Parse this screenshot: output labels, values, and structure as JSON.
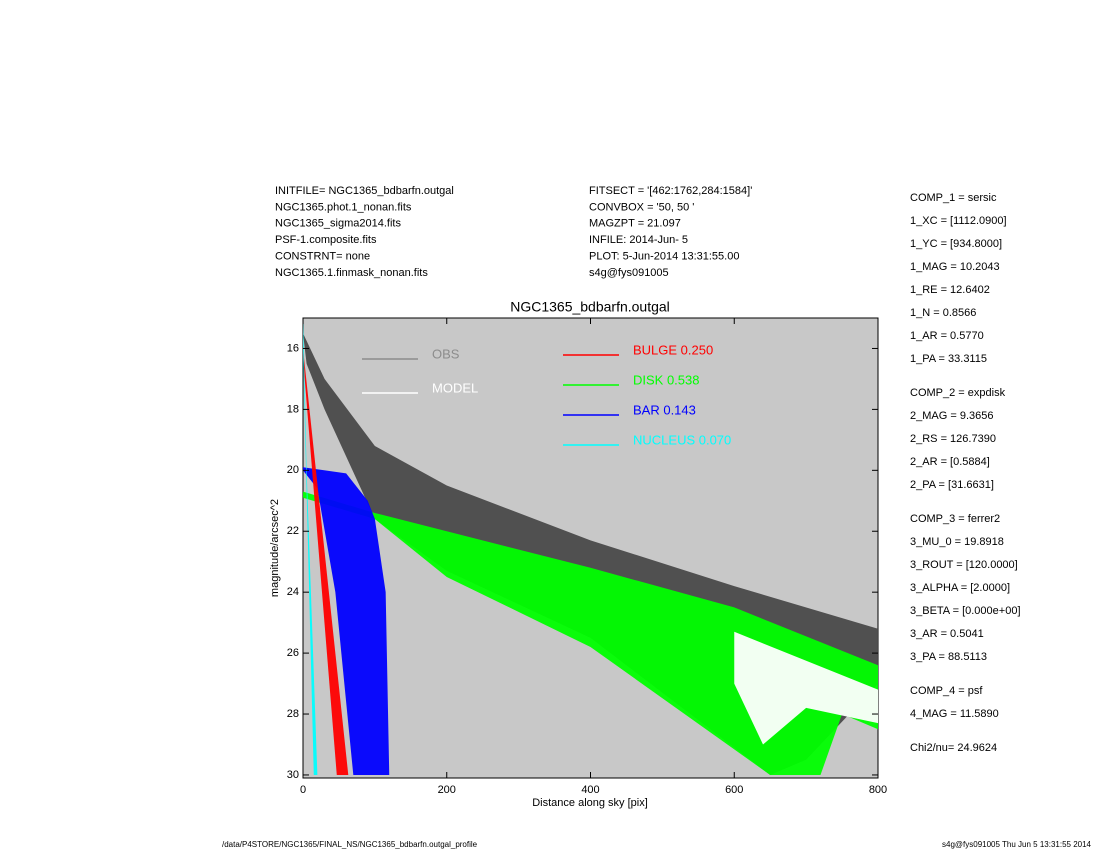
{
  "header": {
    "left": [
      "INITFILE= NGC1365_bdbarfn.outgal",
      "NGC1365.phot.1_nonan.fits",
      "NGC1365_sigma2014.fits",
      "PSF-1.composite.fits",
      "CONSTRNT= none",
      "NGC1365.1.finmask_nonan.fits"
    ],
    "middle": [
      "FITSECT = '[462:1762,284:1584]'",
      "CONVBOX = '50, 50  '",
      "MAGZPT  =              21.097",
      "INFILE: 2014-Jun- 5",
      "PLOT:  5-Jun-2014 13:31:55.00",
      "s4g@fys091005"
    ]
  },
  "components": [
    [
      "COMP_1  = sersic",
      "1_XC     = [1112.0900]",
      "1_YC     = [934.8000]",
      "1_MAG   = 10.2043",
      "1_RE     = 12.6402",
      "1_N      = 0.8566",
      "1_AR     = 0.5770",
      "1_PA     = 33.3115"
    ],
    [
      "COMP_2  = expdisk",
      "2_MAG   = 9.3656",
      "2_RS     = 126.7390",
      "2_AR     = [0.5884]",
      "2_PA     = [31.6631]"
    ],
    [
      "COMP_3  = ferrer2",
      "3_MU_0  = 19.8918",
      "3_ROUT  = [120.0000]",
      "3_ALPHA = [2.0000]",
      "3_BETA  = [0.000e+00]",
      "3_AR     = 0.5041",
      "3_PA     = 88.5113"
    ],
    [
      "COMP_4  = psf",
      "4_MAG   = 11.5890"
    ],
    [
      "Chi2/nu=      24.9624"
    ]
  ],
  "footer": {
    "left": "/data/P4STORE/NGC1365/FINAL_NS/NGC1365_bdbarfn.outgal_profile",
    "right": "s4g@fys091005  Thu Jun  5 13:31:55 2014"
  },
  "chart_data": {
    "type": "band",
    "title": "NGC1365_bdbarfn.outgal",
    "x_label": "Distance along sky [pix]",
    "y_label": "magnitude/arcsec^2",
    "xlim": [
      0,
      800
    ],
    "ylim": [
      15,
      30.1
    ],
    "y_inverted": true,
    "xticks": [
      0,
      200,
      400,
      600,
      800
    ],
    "yticks": [
      16,
      18,
      20,
      22,
      24,
      26,
      28,
      30
    ],
    "background": "#c8c8c8",
    "series": [
      {
        "name": "OBS",
        "color": "#8c8c8c",
        "fill": "#4a4a4a",
        "x": [
          0,
          30,
          100,
          200,
          400,
          600,
          800,
          800,
          700,
          650,
          400,
          200,
          100,
          30,
          5
        ],
        "values": [
          15.5,
          17,
          19.2,
          20.5,
          22.3,
          23.8,
          25.2,
          27,
          29.5,
          30,
          25.5,
          23.3,
          21.6,
          18,
          16.5
        ]
      },
      {
        "name": "MODEL",
        "color": "#ffffff",
        "fill": "#ffffff",
        "x": [
          600,
          800,
          800,
          700,
          640,
          600
        ],
        "values": [
          25.3,
          27.2,
          28.3,
          27.8,
          29,
          27
        ]
      },
      {
        "name": "BULGE  0.250",
        "color": "#ff0000",
        "fill": "#ff0000",
        "x": [
          0,
          63,
          47,
          0
        ],
        "values": [
          16,
          30,
          30,
          16.3
        ]
      },
      {
        "name": "DISK  0.538",
        "color": "#00ff00",
        "fill": "#00ff00",
        "x": [
          0,
          100,
          400,
          600,
          800,
          800,
          750,
          720,
          650,
          400,
          200,
          100,
          0
        ],
        "values": [
          20.7,
          21.4,
          23.2,
          24.5,
          26.4,
          28.5,
          28,
          30,
          30,
          25.8,
          23.5,
          21.6,
          20.9
        ]
      },
      {
        "name": "BAR  0.143",
        "color": "#0000ff",
        "fill": "#0000ff",
        "x": [
          0,
          60,
          90,
          100,
          115,
          120,
          70,
          45,
          20,
          0
        ],
        "values": [
          19.9,
          20.1,
          21,
          21.6,
          24,
          30,
          30,
          24,
          20.6,
          20
        ]
      },
      {
        "name": "NUCLEUS  0.070",
        "color": "#00ffff",
        "fill": "#00ffff",
        "x": [
          0,
          5,
          20,
          15,
          0
        ],
        "values": [
          15,
          20,
          30,
          30,
          16
        ]
      }
    ]
  }
}
